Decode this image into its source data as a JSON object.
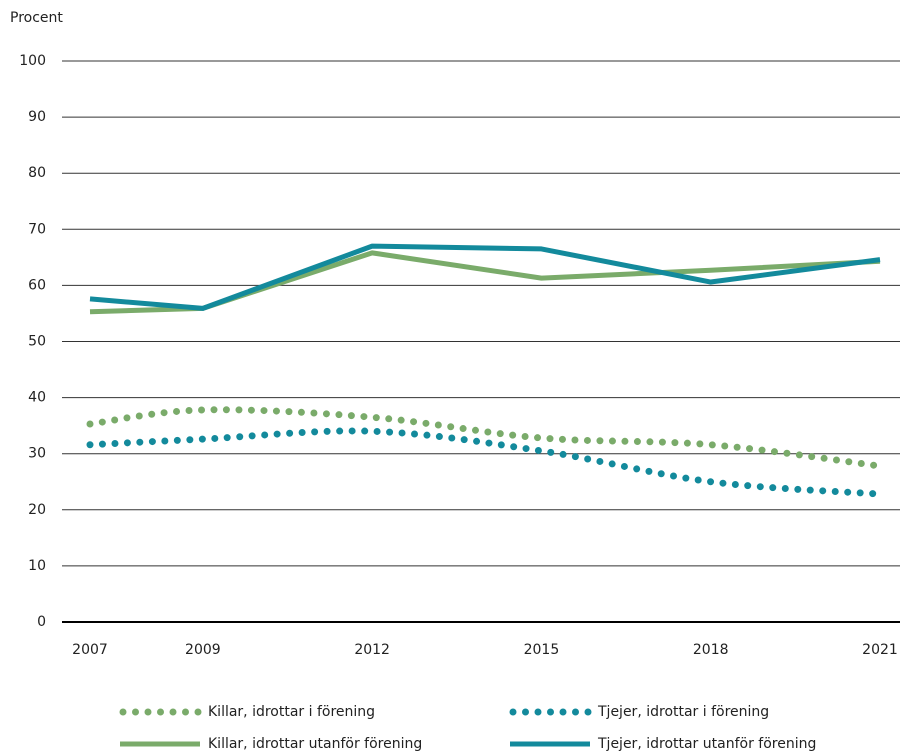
{
  "chart_data": {
    "type": "line",
    "ylabel": "Procent",
    "x": [
      2007,
      2009,
      2012,
      2015,
      2018,
      2021
    ],
    "xlim": [
      2007,
      2021
    ],
    "xticks": [
      2007,
      2009,
      2012,
      2015,
      2018,
      2021
    ],
    "ylim": [
      0,
      100
    ],
    "yticks": [
      0,
      10,
      20,
      30,
      40,
      50,
      60,
      70,
      80,
      90,
      100
    ],
    "grid": true,
    "legend": "bottom",
    "series": [
      {
        "name": "Killar, idrottar i förening",
        "color": "#7aab6a",
        "style": "dotted",
        "values": [
          35.3,
          37.8,
          36.5,
          32.8,
          31.6,
          27.8
        ]
      },
      {
        "name": "Tjejer, idrottar i förening",
        "color": "#138a9c",
        "style": "dotted",
        "values": [
          31.6,
          32.6,
          34.0,
          30.5,
          25.0,
          22.8
        ]
      },
      {
        "name": "Killar, idrottar utanför förening",
        "color": "#7aab6a",
        "style": "solid",
        "values": [
          55.3,
          55.9,
          65.8,
          61.3,
          62.7,
          64.3
        ]
      },
      {
        "name": "Tjejer, idrottar utanför förening",
        "color": "#138a9c",
        "style": "solid",
        "values": [
          57.6,
          55.9,
          67.0,
          66.5,
          60.6,
          64.6
        ]
      }
    ]
  }
}
